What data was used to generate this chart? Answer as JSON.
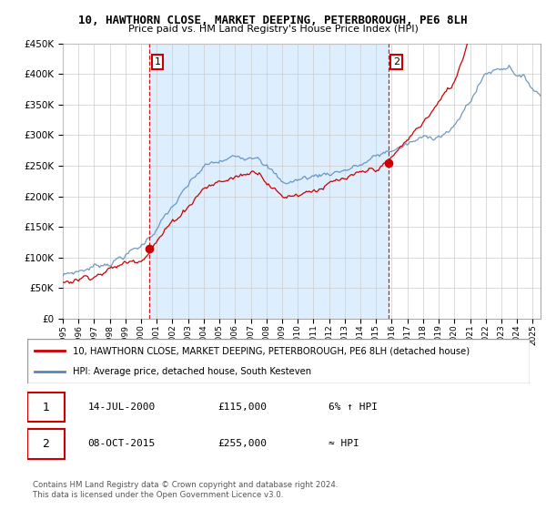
{
  "title": "10, HAWTHORN CLOSE, MARKET DEEPING, PETERBOROUGH, PE6 8LH",
  "subtitle": "Price paid vs. HM Land Registry's House Price Index (HPI)",
  "ylim": [
    0,
    450000
  ],
  "xlim_start": 1995.0,
  "xlim_end": 2025.5,
  "sale1_year": 2000.54,
  "sale1_price": 115000,
  "sale2_year": 2015.77,
  "sale2_price": 255000,
  "legend_line1": "10, HAWTHORN CLOSE, MARKET DEEPING, PETERBOROUGH, PE6 8LH (detached house)",
  "legend_line2": "HPI: Average price, detached house, South Kesteven",
  "table_row1": [
    "1",
    "14-JUL-2000",
    "£115,000",
    "6% ↑ HPI"
  ],
  "table_row2": [
    "2",
    "08-OCT-2015",
    "£255,000",
    "≈ HPI"
  ],
  "footer1": "Contains HM Land Registry data © Crown copyright and database right 2024.",
  "footer2": "This data is licensed under the Open Government Licence v3.0.",
  "red_color": "#cc0000",
  "blue_color": "#5588bb",
  "shade_color": "#ddeeff",
  "grid_color": "#cccccc"
}
